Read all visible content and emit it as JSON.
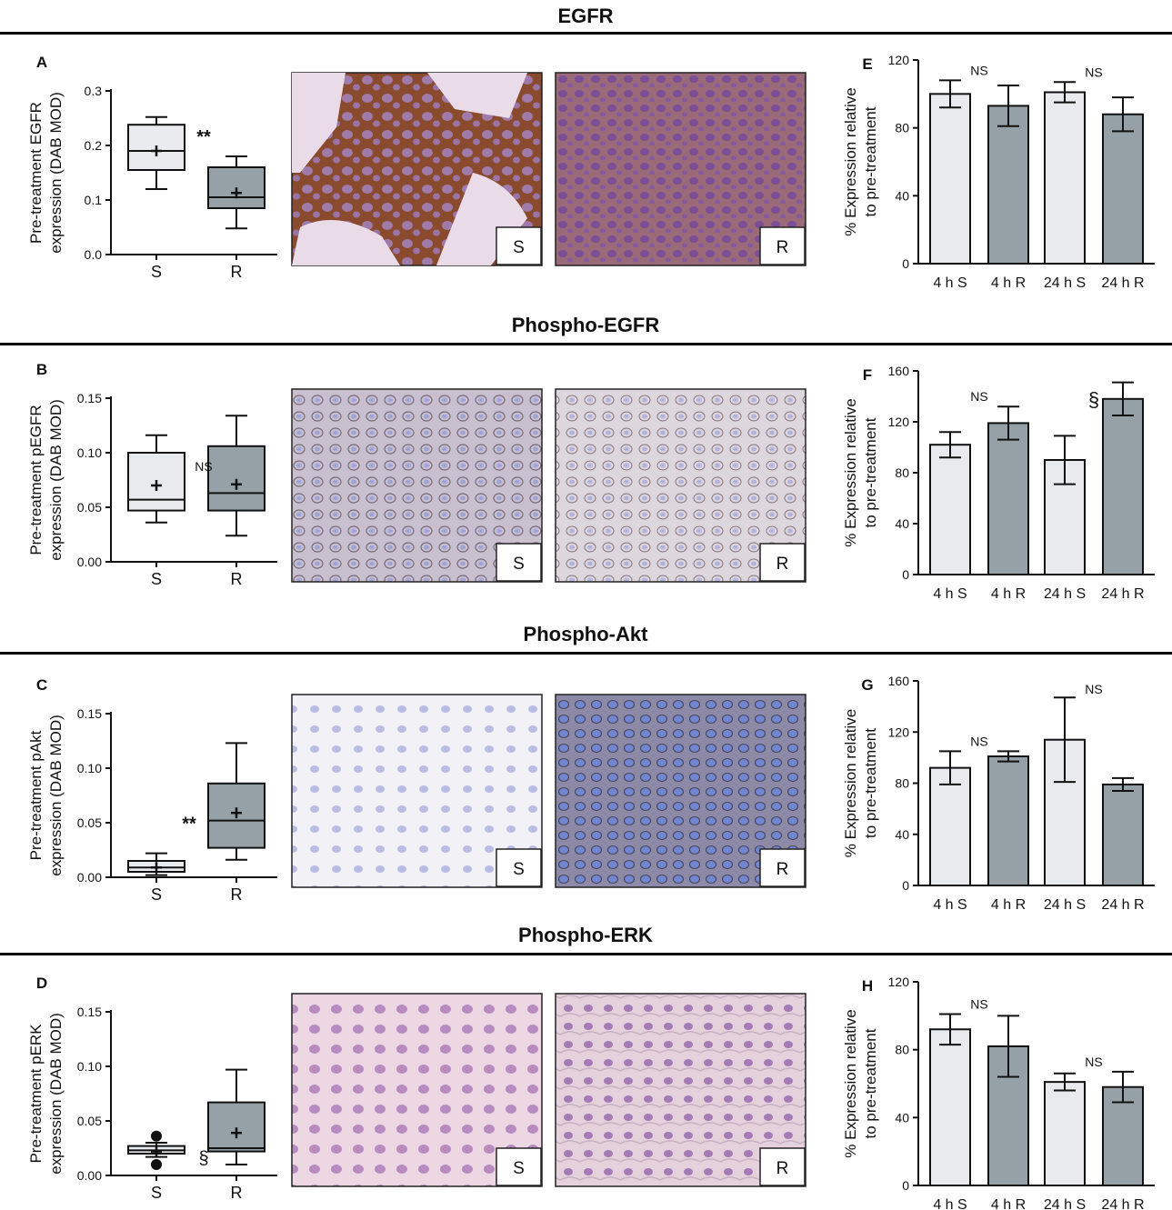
{
  "sections": [
    {
      "heading": "EGFR",
      "box": {
        "panel": "A",
        "ylabel_line1": "Pre-treatment EGFR",
        "ylabel_line2": "expression (DAB MOD)",
        "ylim": [
          0,
          0.3
        ],
        "yticks": [
          "0.0",
          "0.1",
          "0.2",
          "0.3"
        ],
        "tick_values": [
          0,
          0.1,
          0.2,
          0.3
        ],
        "categories": [
          "S",
          "R"
        ],
        "groups": [
          {
            "min": 0.12,
            "q1": 0.155,
            "median": 0.19,
            "q3": 0.238,
            "max": 0.252,
            "mean": 0.19,
            "outliers": []
          },
          {
            "min": 0.048,
            "q1": 0.085,
            "median": 0.105,
            "q3": 0.16,
            "max": 0.18,
            "mean": 0.113,
            "outliers": []
          }
        ],
        "annotation": {
          "text": "**",
          "at": "S"
        }
      },
      "image_labels": [
        "S",
        "R"
      ],
      "bar": {
        "panel": "E",
        "ylabel_line1": "% Expression relative",
        "ylabel_line2": "to pre-treatment",
        "ylim": [
          0,
          120
        ],
        "yticks": [
          "0",
          "40",
          "80",
          "120"
        ],
        "tick_values": [
          0,
          40,
          80,
          120
        ],
        "categories": [
          "4 h S",
          "4 h R",
          "24 h S",
          "24 h R"
        ],
        "values": [
          100,
          93,
          101,
          88
        ],
        "errors": [
          8,
          12,
          6,
          10
        ],
        "annotations": [
          {
            "text": "NS",
            "between": [
              0,
              1
            ]
          },
          {
            "text": "NS",
            "between": [
              2,
              3
            ]
          }
        ]
      }
    },
    {
      "heading": "Phospho-EGFR",
      "box": {
        "panel": "B",
        "ylabel_line1": "Pre-treatment pEGFR",
        "ylabel_line2": "expression (DAB MOD)",
        "ylim": [
          0,
          0.15
        ],
        "yticks": [
          "0.00",
          "0.05",
          "0.10",
          "0.15"
        ],
        "tick_values": [
          0,
          0.05,
          0.1,
          0.15
        ],
        "categories": [
          "S",
          "R"
        ],
        "groups": [
          {
            "min": 0.036,
            "q1": 0.047,
            "median": 0.057,
            "q3": 0.1,
            "max": 0.116,
            "mean": 0.07,
            "outliers": []
          },
          {
            "min": 0.024,
            "q1": 0.047,
            "median": 0.063,
            "q3": 0.106,
            "max": 0.134,
            "mean": 0.071,
            "outliers": []
          }
        ],
        "annotation": {
          "text": "NS",
          "at": "S"
        }
      },
      "image_labels": [
        "S",
        "R"
      ],
      "bar": {
        "panel": "F",
        "ylabel_line1": "% Expression relative",
        "ylabel_line2": "to pre-treatment",
        "ylim": [
          0,
          160
        ],
        "yticks": [
          "0",
          "40",
          "80",
          "120",
          "160"
        ],
        "tick_values": [
          0,
          40,
          80,
          120,
          160
        ],
        "categories": [
          "4 h S",
          "4 h R",
          "24 h S",
          "24 h R"
        ],
        "values": [
          102,
          119,
          90,
          138
        ],
        "errors": [
          10,
          13,
          19,
          13
        ],
        "annotations": [
          {
            "text": "NS",
            "between": [
              0,
              1
            ]
          },
          {
            "text": "§",
            "between": [
              2,
              3
            ]
          }
        ]
      }
    },
    {
      "heading": "Phospho-Akt",
      "box": {
        "panel": "C",
        "ylabel_line1": "Pre-treatment pAkt",
        "ylabel_line2": "expression (DAB MOD)",
        "ylim": [
          0,
          0.15
        ],
        "yticks": [
          "0.00",
          "0.05",
          "0.10",
          "0.15"
        ],
        "tick_values": [
          0,
          0.05,
          0.1,
          0.15
        ],
        "categories": [
          "S",
          "R"
        ],
        "groups": [
          {
            "min": 0.002,
            "q1": 0.005,
            "median": 0.009,
            "q3": 0.015,
            "max": 0.022,
            "mean": 0.009,
            "outliers": []
          },
          {
            "min": 0.016,
            "q1": 0.027,
            "median": 0.052,
            "q3": 0.086,
            "max": 0.123,
            "mean": 0.059,
            "outliers": []
          }
        ],
        "annotation": {
          "text": "**",
          "at": "R"
        }
      },
      "image_labels": [
        "S",
        "R"
      ],
      "bar": {
        "panel": "G",
        "ylabel_line1": "% Expression relative",
        "ylabel_line2": "to pre-treatment",
        "ylim": [
          0,
          160
        ],
        "yticks": [
          "0",
          "40",
          "80",
          "120",
          "160"
        ],
        "tick_values": [
          0,
          40,
          80,
          120,
          160
        ],
        "categories": [
          "4 h S",
          "4 h R",
          "24 h S",
          "24 h R"
        ],
        "values": [
          92,
          101,
          114,
          79
        ],
        "errors": [
          13,
          4,
          33,
          5
        ],
        "annotations": [
          {
            "text": "NS",
            "between": [
              0,
              1
            ]
          },
          {
            "text": "NS",
            "between": [
              2,
              3
            ]
          }
        ]
      }
    },
    {
      "heading": "Phospho-ERK",
      "box": {
        "panel": "D",
        "ylabel_line1": "Pre-treatment pERK",
        "ylabel_line2": "expression (DAB MOD)",
        "ylim": [
          0,
          0.15
        ],
        "yticks": [
          "0.00",
          "0.05",
          "0.10",
          "0.15"
        ],
        "tick_values": [
          0,
          0.05,
          0.1,
          0.15
        ],
        "categories": [
          "S",
          "R"
        ],
        "groups": [
          {
            "min": 0.017,
            "q1": 0.02,
            "median": 0.023,
            "q3": 0.027,
            "max": 0.03,
            "mean": 0.022,
            "outliers": [
              0.01,
              0.036
            ]
          },
          {
            "min": 0.01,
            "q1": 0.022,
            "median": 0.025,
            "q3": 0.067,
            "max": 0.097,
            "mean": 0.039,
            "outliers": []
          }
        ],
        "annotation": {
          "text": "§",
          "at": "S"
        }
      },
      "image_labels": [
        "S",
        "R"
      ],
      "bar": {
        "panel": "H",
        "ylabel_line1": "% Expression relative",
        "ylabel_line2": "to pre-treatment",
        "ylim": [
          0,
          120
        ],
        "yticks": [
          "0",
          "40",
          "80",
          "120"
        ],
        "tick_values": [
          0,
          40,
          80,
          120
        ],
        "categories": [
          "4 h S",
          "4 h R",
          "24 h S",
          "24 h R"
        ],
        "values": [
          92,
          82,
          61,
          58
        ],
        "errors": [
          9,
          18,
          5,
          9
        ],
        "annotations": [
          {
            "text": "NS",
            "between": [
              0,
              1
            ]
          },
          {
            "text": "NS",
            "between": [
              2,
              3
            ]
          }
        ]
      }
    }
  ],
  "colors": {
    "light_fill": "#e8eaed",
    "dark_fill": "#95a1a6",
    "ink": "#111111",
    "egfr_stain": "#8a4a2e",
    "section_rule": "#000000"
  },
  "chart_data": [
    {
      "type": "box",
      "panel": "A",
      "categories": [
        "S",
        "R"
      ],
      "ylabel": "Pre-treatment EGFR expression (DAB MOD)",
      "ylim": [
        0,
        0.3
      ],
      "series": [
        {
          "name": "S",
          "min": 0.12,
          "q1": 0.155,
          "median": 0.19,
          "q3": 0.238,
          "max": 0.252,
          "mean": 0.19
        },
        {
          "name": "R",
          "min": 0.048,
          "q1": 0.085,
          "median": 0.105,
          "q3": 0.16,
          "max": 0.18,
          "mean": 0.113
        }
      ]
    },
    {
      "type": "box",
      "panel": "B",
      "categories": [
        "S",
        "R"
      ],
      "ylabel": "Pre-treatment pEGFR expression (DAB MOD)",
      "ylim": [
        0,
        0.15
      ],
      "series": [
        {
          "name": "S",
          "min": 0.036,
          "q1": 0.047,
          "median": 0.057,
          "q3": 0.1,
          "max": 0.116,
          "mean": 0.07
        },
        {
          "name": "R",
          "min": 0.024,
          "q1": 0.047,
          "median": 0.063,
          "q3": 0.106,
          "max": 0.134,
          "mean": 0.071
        }
      ]
    },
    {
      "type": "box",
      "panel": "C",
      "categories": [
        "S",
        "R"
      ],
      "ylabel": "Pre-treatment pAkt expression (DAB MOD)",
      "ylim": [
        0,
        0.15
      ],
      "series": [
        {
          "name": "S",
          "min": 0.002,
          "q1": 0.005,
          "median": 0.009,
          "q3": 0.015,
          "max": 0.022,
          "mean": 0.009
        },
        {
          "name": "R",
          "min": 0.016,
          "q1": 0.027,
          "median": 0.052,
          "q3": 0.086,
          "max": 0.123,
          "mean": 0.059
        }
      ]
    },
    {
      "type": "box",
      "panel": "D",
      "categories": [
        "S",
        "R"
      ],
      "ylabel": "Pre-treatment pERK expression (DAB MOD)",
      "ylim": [
        0,
        0.15
      ],
      "series": [
        {
          "name": "S",
          "min": 0.017,
          "q1": 0.02,
          "median": 0.023,
          "q3": 0.027,
          "max": 0.03,
          "mean": 0.022
        },
        {
          "name": "R",
          "min": 0.01,
          "q1": 0.022,
          "median": 0.025,
          "q3": 0.067,
          "max": 0.097,
          "mean": 0.039
        }
      ]
    },
    {
      "type": "bar",
      "panel": "E",
      "categories": [
        "4 h S",
        "4 h R",
        "24 h S",
        "24 h R"
      ],
      "values": [
        100,
        93,
        101,
        88
      ],
      "errors": [
        8,
        12,
        6,
        10
      ],
      "ylabel": "% Expression relative to pre-treatment",
      "ylim": [
        0,
        120
      ]
    },
    {
      "type": "bar",
      "panel": "F",
      "categories": [
        "4 h S",
        "4 h R",
        "24 h S",
        "24 h R"
      ],
      "values": [
        102,
        119,
        90,
        138
      ],
      "errors": [
        10,
        13,
        19,
        13
      ],
      "ylabel": "% Expression relative to pre-treatment",
      "ylim": [
        0,
        160
      ]
    },
    {
      "type": "bar",
      "panel": "G",
      "categories": [
        "4 h S",
        "4 h R",
        "24 h S",
        "24 h R"
      ],
      "values": [
        92,
        101,
        114,
        79
      ],
      "errors": [
        13,
        4,
        33,
        5
      ],
      "ylabel": "% Expression relative to pre-treatment",
      "ylim": [
        0,
        160
      ]
    },
    {
      "type": "bar",
      "panel": "H",
      "categories": [
        "4 h S",
        "4 h R",
        "24 h S",
        "24 h R"
      ],
      "values": [
        92,
        82,
        61,
        58
      ],
      "errors": [
        9,
        18,
        5,
        9
      ],
      "ylabel": "% Expression relative to pre-treatment",
      "ylim": [
        0,
        120
      ]
    }
  ]
}
